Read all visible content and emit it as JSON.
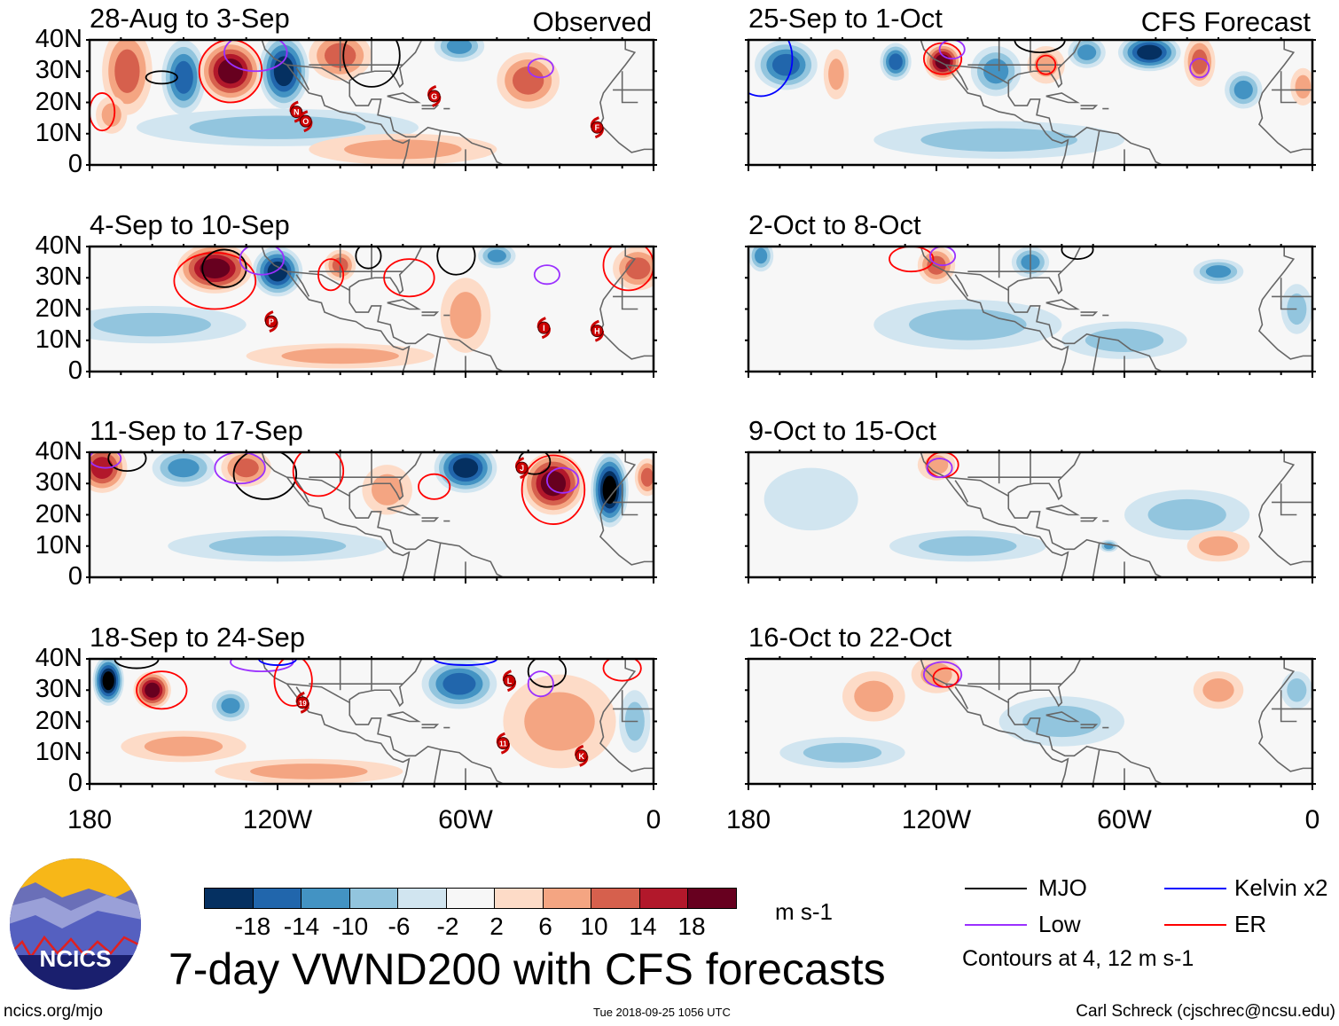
{
  "figure_title": "7-day VWND200 with CFS forecasts",
  "column_tags": {
    "observed": "Observed",
    "forecast": "CFS Forecast"
  },
  "y_labels": [
    "40N",
    "30N",
    "20N",
    "10N",
    "0"
  ],
  "x_labels": [
    "180",
    "120W",
    "60W",
    "0"
  ],
  "x_label_lons": [
    -180,
    -120,
    -60,
    0
  ],
  "colors": {
    "bins": [
      "#053061",
      "#2166ac",
      "#4393c3",
      "#92c5de",
      "#d1e5f0",
      "#f7f7f7",
      "#fddbc7",
      "#f4a582",
      "#d6604d",
      "#b2182b",
      "#67001f"
    ],
    "mjo": "#000000",
    "low": "#9b30ff",
    "kelvin": "#0000ff",
    "er": "#ff0000",
    "storm": "#cc0000",
    "coast": "#666666"
  },
  "colorbar": {
    "ticks": [
      "-18",
      "-14",
      "-10",
      "-6",
      "-2",
      "2",
      "6",
      "10",
      "14",
      "18"
    ],
    "units": "m s-1"
  },
  "legend": {
    "mjo": "MJO",
    "low": "Low",
    "kelvin": "Kelvin x2",
    "er": "ER",
    "note": "Contours at 4, 12 m s-1"
  },
  "footer": {
    "site": "ncics.org/mjo",
    "timestamp": "Tue 2018-09-25 1056 UTC",
    "author": "Carl Schreck (cjschrec@ncsu.edu)",
    "logo_text": "NCICS"
  },
  "panels": [
    {
      "title": "28-Aug to 3-Sep",
      "column": "observed",
      "anoms": [
        [
          -168,
          30,
          10,
          8,
          14
        ],
        [
          -150,
          28,
          -10,
          7,
          12
        ],
        [
          -135,
          30,
          18,
          10,
          10
        ],
        [
          -118,
          30,
          -14,
          8,
          12
        ],
        [
          -100,
          35,
          10,
          10,
          8
        ],
        [
          -40,
          27,
          10,
          10,
          9
        ],
        [
          -62,
          38,
          -6,
          8,
          5
        ],
        [
          -120,
          12,
          -3,
          45,
          6
        ],
        [
          -80,
          5,
          3,
          30,
          5
        ],
        [
          -173,
          16,
          6,
          5,
          6
        ]
      ],
      "contours": [
        [
          "er",
          -135,
          30,
          10,
          10
        ],
        [
          "low",
          -127,
          36,
          10,
          6
        ],
        [
          "mjo",
          -157,
          28,
          5,
          2
        ],
        [
          "mjo",
          -90,
          35,
          9,
          10
        ],
        [
          "low",
          -36,
          31,
          4,
          3
        ],
        [
          "er",
          -176,
          17,
          4,
          6
        ]
      ],
      "storms": [
        [
          "N",
          -114,
          17
        ],
        [
          "O",
          -111,
          14
        ],
        [
          "G",
          -70,
          22
        ],
        [
          "F",
          -18,
          12
        ]
      ]
    },
    {
      "title": "4-Sep to 10-Sep",
      "column": "observed",
      "anoms": [
        [
          -140,
          33,
          18,
          12,
          8
        ],
        [
          -120,
          32,
          -14,
          8,
          8
        ],
        [
          -100,
          34,
          10,
          5,
          5
        ],
        [
          -5,
          33,
          10,
          8,
          7
        ],
        [
          -60,
          18,
          3,
          8,
          12
        ],
        [
          -50,
          37,
          -6,
          6,
          4
        ],
        [
          -160,
          15,
          -3,
          30,
          6
        ],
        [
          -100,
          5,
          3,
          30,
          4
        ]
      ],
      "contours": [
        [
          "er",
          -140,
          29,
          13,
          9
        ],
        [
          "mjo",
          -137,
          33,
          7,
          6
        ],
        [
          "low",
          -125,
          36,
          7,
          5
        ],
        [
          "er",
          -103,
          31,
          4,
          5
        ],
        [
          "er",
          -78,
          30,
          8,
          6
        ],
        [
          "mjo",
          -63,
          37,
          6,
          6
        ],
        [
          "low",
          -34,
          31,
          4,
          3
        ],
        [
          "er",
          -8,
          34,
          8,
          8
        ],
        [
          "mjo",
          -91,
          37,
          4,
          4
        ]
      ],
      "storms": [
        [
          "P",
          -122,
          16
        ],
        [
          "I",
          -35,
          14
        ],
        [
          "H",
          -18,
          13
        ]
      ]
    },
    {
      "title": "11-Sep to 17-Sep",
      "column": "observed",
      "anoms": [
        [
          -176,
          35,
          14,
          8,
          8
        ],
        [
          -130,
          35,
          10,
          8,
          6
        ],
        [
          -60,
          35,
          -14,
          10,
          8
        ],
        [
          -32,
          30,
          18,
          10,
          10
        ],
        [
          -14,
          28,
          -18,
          6,
          12
        ],
        [
          -2,
          32,
          10,
          4,
          6
        ],
        [
          -150,
          35,
          -6,
          10,
          6
        ],
        [
          -85,
          28,
          3,
          8,
          8
        ],
        [
          -120,
          10,
          -2,
          35,
          5
        ]
      ],
      "contours": [
        [
          "er",
          -32,
          28,
          10,
          11
        ],
        [
          "low",
          -29,
          31,
          5,
          4
        ],
        [
          "mjo",
          -124,
          33,
          10,
          8
        ],
        [
          "mjo",
          -168,
          38,
          6,
          4
        ],
        [
          "low",
          -132,
          35,
          8,
          5
        ],
        [
          "er",
          -107,
          34,
          8,
          8
        ],
        [
          "er",
          -70,
          29,
          5,
          4
        ],
        [
          "low",
          -175,
          38,
          5,
          3
        ],
        [
          "mjo",
          -38,
          37,
          5,
          4
        ]
      ],
      "storms": [
        [
          "J",
          -42,
          35
        ]
      ]
    },
    {
      "title": "18-Sep to 24-Sep",
      "column": "observed",
      "anoms": [
        [
          -174,
          33,
          -18,
          5,
          8
        ],
        [
          -160,
          30,
          18,
          6,
          6
        ],
        [
          -135,
          25,
          -6,
          6,
          5
        ],
        [
          -62,
          32,
          -10,
          12,
          8
        ],
        [
          -30,
          20,
          3,
          18,
          15
        ],
        [
          -110,
          4,
          3,
          30,
          4
        ],
        [
          -6,
          20,
          -3,
          5,
          10
        ],
        [
          -150,
          12,
          3,
          20,
          5
        ]
      ],
      "contours": [
        [
          "er",
          -157,
          30,
          8,
          6
        ],
        [
          "mjo",
          -165,
          40,
          7,
          3
        ],
        [
          "low",
          -125,
          39,
          10,
          3
        ],
        [
          "er",
          -115,
          33,
          6,
          8
        ],
        [
          "kelvin",
          -120,
          40,
          6,
          2
        ],
        [
          "kelvin",
          -60,
          40,
          10,
          2
        ],
        [
          "mjo",
          -34,
          36,
          6,
          5
        ],
        [
          "low",
          -36,
          32,
          4,
          4
        ],
        [
          "er",
          -10,
          37,
          6,
          4
        ]
      ],
      "storms": [
        [
          "19",
          -112,
          26
        ],
        [
          "L",
          -46,
          33
        ],
        [
          "11",
          -48,
          13
        ],
        [
          "K",
          -23,
          9
        ]
      ]
    },
    {
      "title": "25-Sep to 1-Oct",
      "column": "forecast",
      "anoms": [
        [
          -168,
          32,
          -10,
          10,
          8
        ],
        [
          -152,
          29,
          6,
          4,
          8
        ],
        [
          -133,
          33,
          -10,
          5,
          6
        ],
        [
          -118,
          33,
          18,
          6,
          6
        ],
        [
          -101,
          30,
          -6,
          8,
          8
        ],
        [
          -85,
          32,
          6,
          6,
          6
        ],
        [
          -72,
          36,
          -6,
          6,
          5
        ],
        [
          -52,
          36,
          -14,
          10,
          6
        ],
        [
          -36,
          33,
          10,
          5,
          8
        ],
        [
          -22,
          24,
          -6,
          6,
          6
        ],
        [
          -3,
          25,
          6,
          4,
          6
        ],
        [
          -100,
          8,
          -2,
          40,
          6
        ]
      ],
      "contours": [
        [
          "kelvin",
          -176,
          34,
          10,
          12
        ],
        [
          "er",
          -118,
          34,
          6,
          5
        ],
        [
          "low",
          -115,
          37,
          4,
          3
        ],
        [
          "mjo",
          -87,
          40,
          8,
          4
        ],
        [
          "er",
          -85,
          32,
          3,
          3
        ],
        [
          "low",
          -36,
          31,
          3,
          3
        ]
      ],
      "storms": []
    },
    {
      "title": "2-Oct to 8-Oct",
      "column": "forecast",
      "anoms": [
        [
          -176,
          37,
          -6,
          4,
          5
        ],
        [
          -120,
          34,
          10,
          6,
          6
        ],
        [
          -90,
          35,
          -6,
          6,
          5
        ],
        [
          -30,
          32,
          -6,
          8,
          4
        ],
        [
          -110,
          15,
          -2,
          30,
          8
        ],
        [
          -60,
          10,
          -2,
          20,
          6
        ],
        [
          -5,
          20,
          -3,
          5,
          8
        ]
      ],
      "contours": [
        [
          "er",
          -128,
          36,
          7,
          4
        ],
        [
          "low",
          -118,
          37,
          4,
          3
        ],
        [
          "mjo",
          -75,
          39,
          5,
          3
        ]
      ],
      "storms": []
    },
    {
      "title": "9-Oct to 15-Oct",
      "column": "forecast",
      "anoms": [
        [
          -120,
          36,
          6,
          6,
          5
        ],
        [
          -160,
          25,
          2,
          15,
          10
        ],
        [
          -40,
          20,
          -2,
          20,
          8
        ],
        [
          -110,
          10,
          -2,
          25,
          5
        ],
        [
          -30,
          10,
          3,
          10,
          5
        ],
        [
          -65,
          10,
          -6,
          3,
          2
        ]
      ],
      "contours": [
        [
          "er",
          -118,
          36,
          5,
          4
        ],
        [
          "low",
          -119,
          35,
          4,
          3
        ]
      ],
      "storms": []
    },
    {
      "title": "16-Oct to 22-Oct",
      "column": "forecast",
      "anoms": [
        [
          -120,
          35,
          6,
          8,
          6
        ],
        [
          -140,
          28,
          3,
          10,
          8
        ],
        [
          -30,
          30,
          3,
          8,
          6
        ],
        [
          -80,
          20,
          -2,
          20,
          8
        ],
        [
          -5,
          30,
          -3,
          5,
          6
        ],
        [
          -150,
          10,
          -2,
          20,
          5
        ]
      ],
      "contours": [
        [
          "low",
          -118,
          35,
          6,
          4
        ],
        [
          "er",
          -117,
          34,
          4,
          3
        ]
      ],
      "storms": []
    }
  ]
}
